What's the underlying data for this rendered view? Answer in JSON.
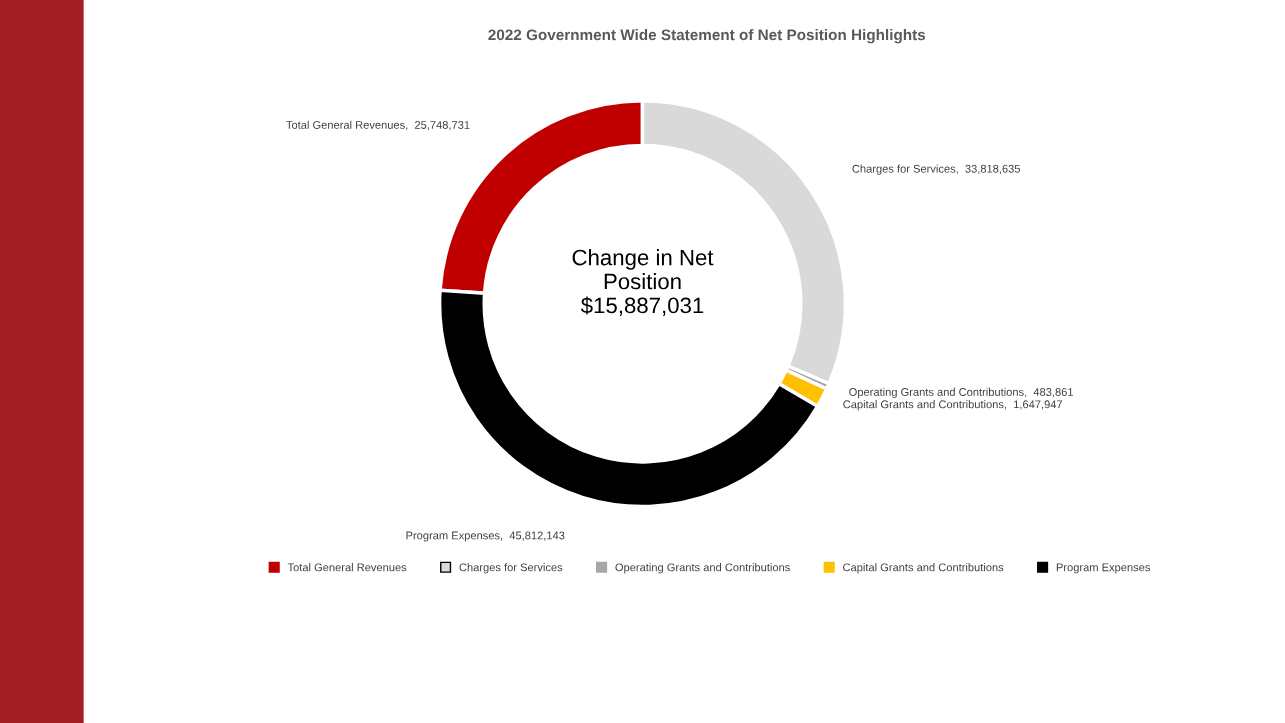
{
  "chart_data": {
    "type": "donut",
    "title": "2022 Government Wide Statement of Net Position Highlights",
    "categories": [
      "Total General Revenues",
      "Charges for Services",
      "Operating Grants and Contributions",
      "Capital Grants and Contributions",
      "Program Expenses"
    ],
    "values": [
      25748731,
      33818635,
      483861,
      1647947,
      45812143
    ],
    "colors": [
      "#c00000",
      "#d9d9d9",
      "#a6a6a6",
      "#ffc000",
      "#000000"
    ],
    "value_labels": [
      "Total General Revenues,  25,748,731",
      "Charges for Services,  33,818,635",
      "Operating Grants and Contributions,  483,861",
      "Capital Grants and Contributions,  1,647,947",
      "Program Expenses,  45,812,143"
    ],
    "legend": "bottom",
    "annotations": [
      "Change in Net\nPosition\n$15,887,031"
    ]
  }
}
